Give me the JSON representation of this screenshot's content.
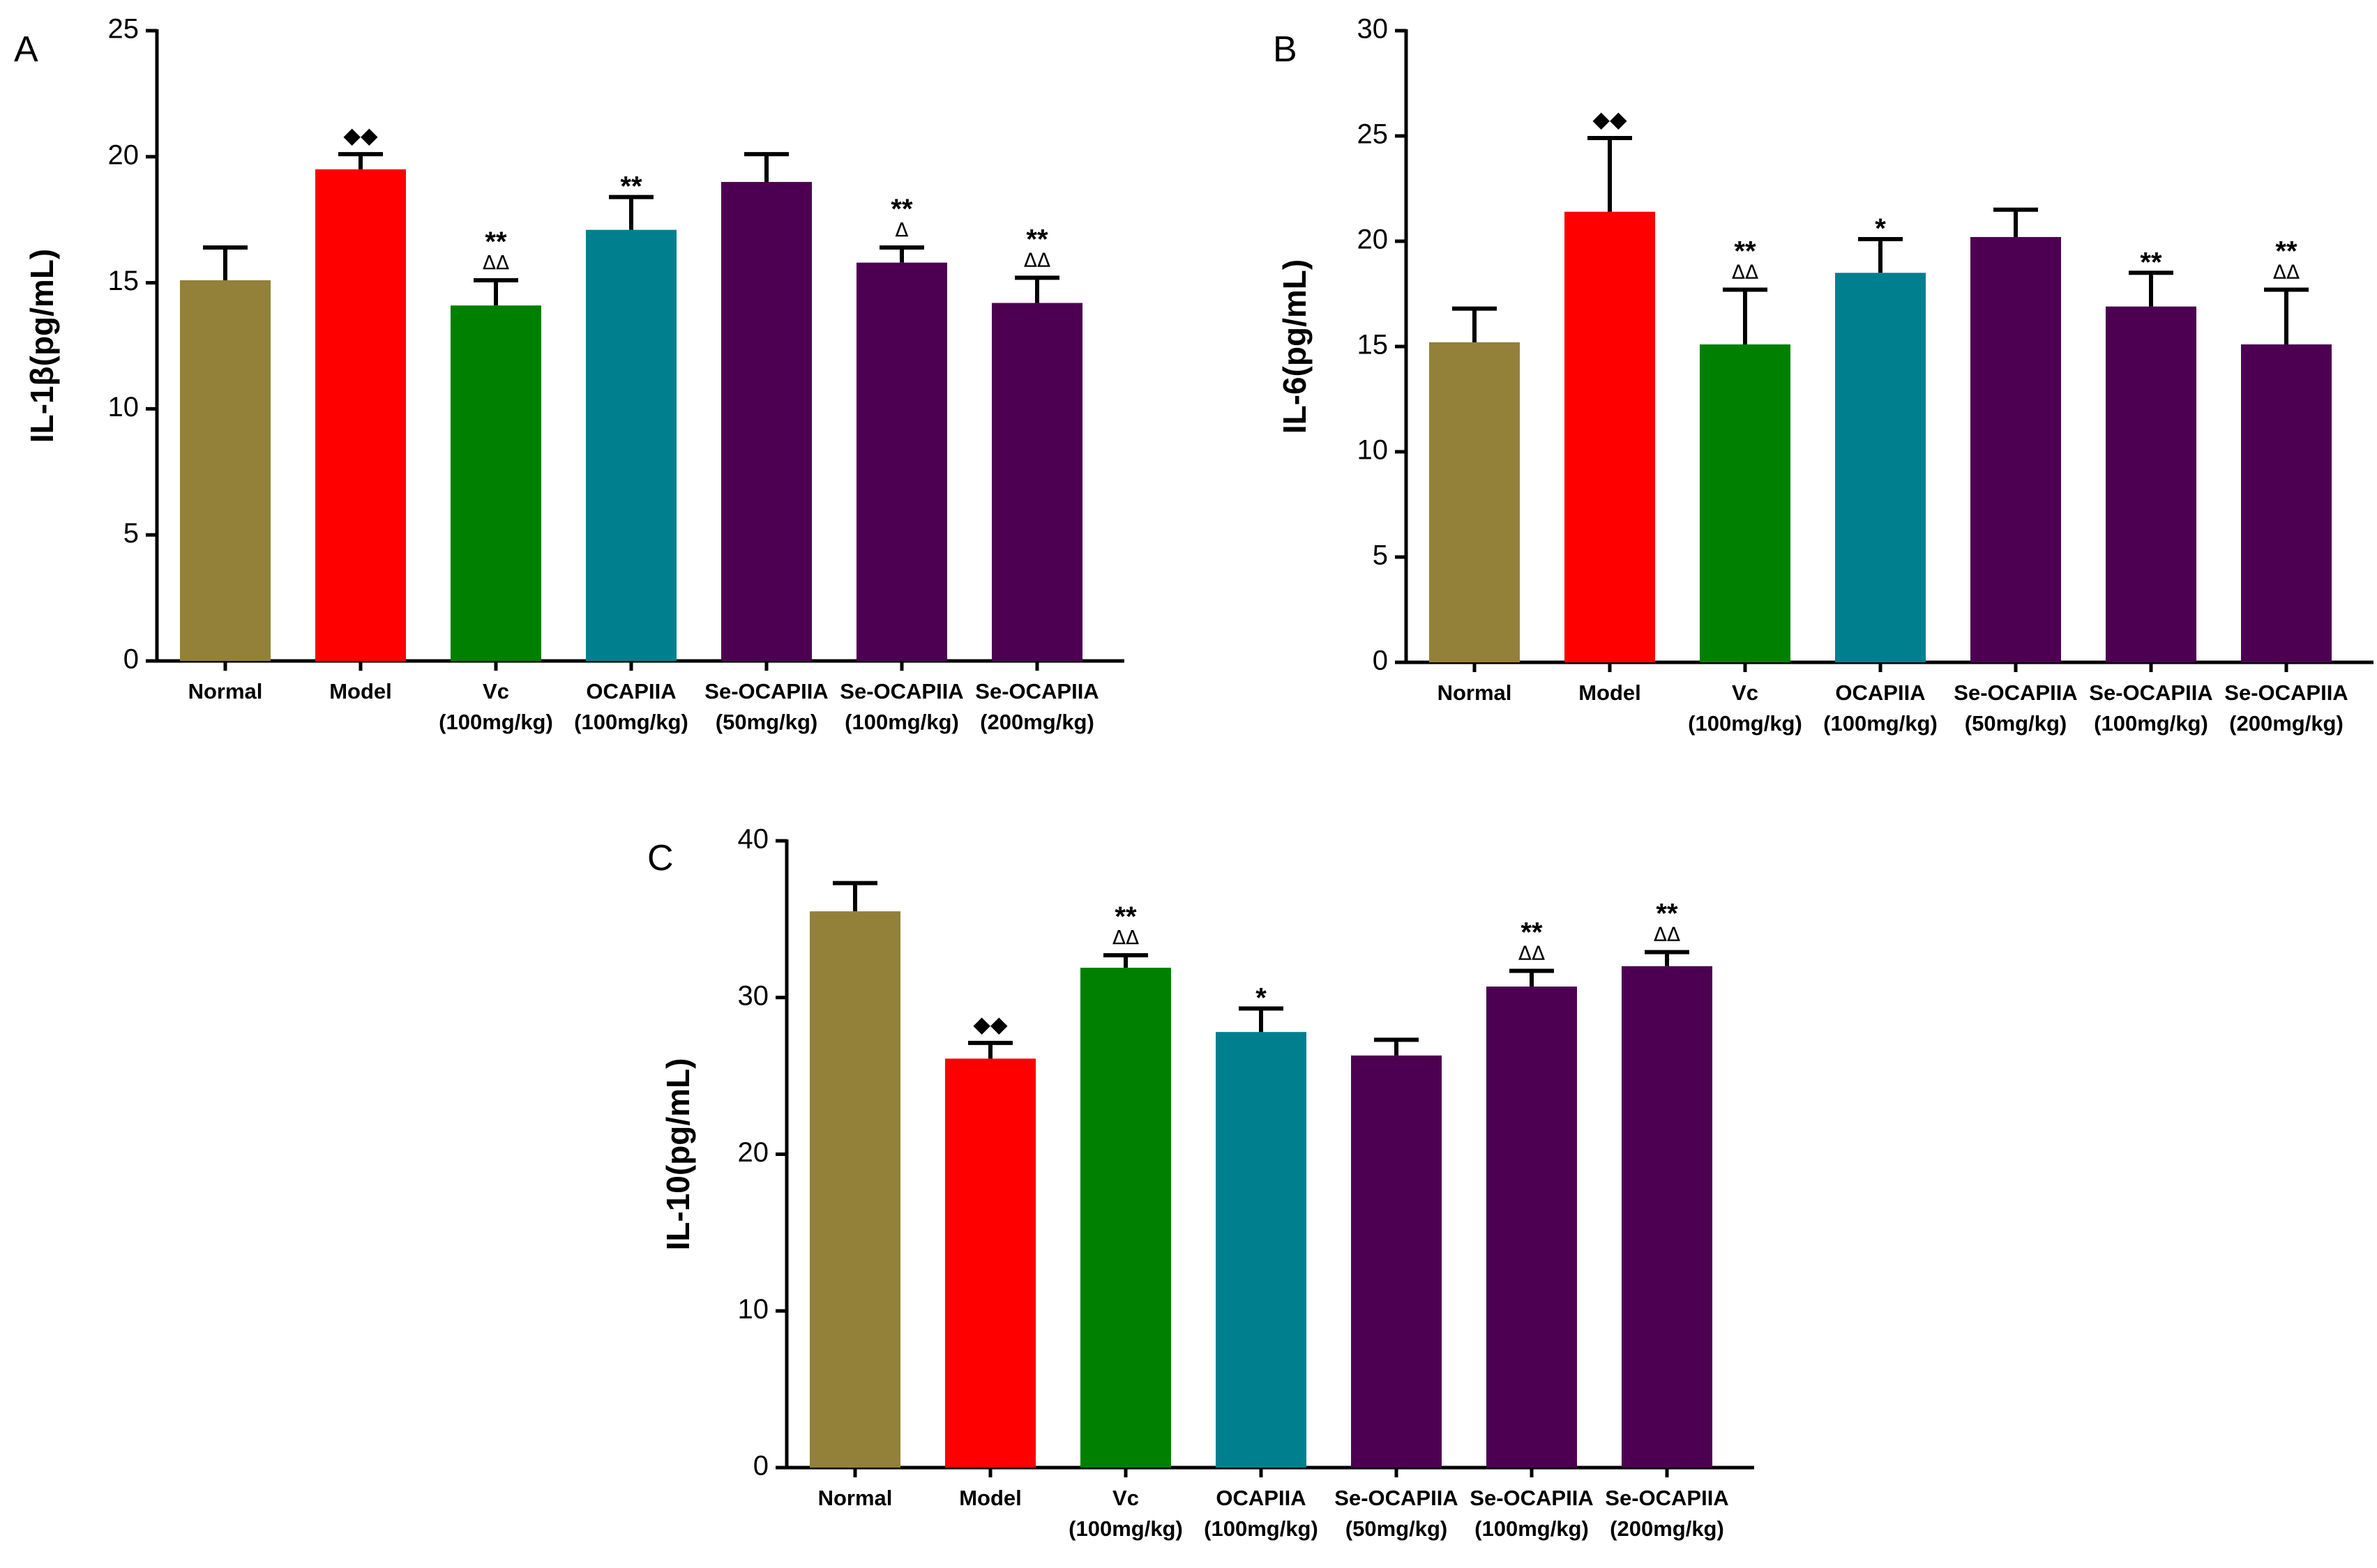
{
  "colors": {
    "normal": "#938039",
    "model": "#ff0000",
    "vc": "#008000",
    "ocapiia": "#00808f",
    "se": "#4d0051"
  },
  "chart_data": [
    {
      "panel": "A",
      "type": "bar",
      "ylabel": "IL-1β(pg/mL)",
      "ylim": [
        0,
        25
      ],
      "yticks": [
        0,
        5,
        10,
        15,
        20,
        25
      ],
      "categories": [
        [
          "Normal"
        ],
        [
          "Model"
        ],
        [
          "Vc",
          "(100mg/kg)"
        ],
        [
          "OCAPIIA",
          "(100mg/kg)"
        ],
        [
          "Se-OCAPIIA",
          "(50mg/kg)"
        ],
        [
          "Se-OCAPIIA",
          "(100mg/kg)"
        ],
        [
          "Se-OCAPIIA",
          "(200mg/kg)"
        ]
      ],
      "values": [
        15.1,
        19.5,
        14.1,
        17.1,
        19.0,
        15.8,
        14.2
      ],
      "errors": [
        1.3,
        0.6,
        1.0,
        1.3,
        1.1,
        0.6,
        1.0
      ],
      "color_keys": [
        "normal",
        "model",
        "vc",
        "ocapiia",
        "se",
        "se",
        "se"
      ],
      "significance": [
        [],
        [
          "◆◆"
        ],
        [
          "**",
          "ΔΔ"
        ],
        [
          "**"
        ],
        [],
        [
          "**",
          "Δ"
        ],
        [
          "**",
          "ΔΔ"
        ]
      ]
    },
    {
      "panel": "B",
      "type": "bar",
      "ylabel": "IL-6(pg/mL)",
      "ylim": [
        0,
        30
      ],
      "yticks": [
        0,
        5,
        10,
        15,
        20,
        25,
        30
      ],
      "categories": [
        [
          "Normal"
        ],
        [
          "Model"
        ],
        [
          "Vc",
          "(100mg/kg)"
        ],
        [
          "OCAPIIA",
          "(100mg/kg)"
        ],
        [
          "Se-OCAPIIA",
          "(50mg/kg)"
        ],
        [
          "Se-OCAPIIA",
          "(100mg/kg)"
        ],
        [
          "Se-OCAPIIA",
          "(200mg/kg)"
        ]
      ],
      "values": [
        15.2,
        21.4,
        15.1,
        18.5,
        20.2,
        16.9,
        15.1
      ],
      "errors": [
        1.6,
        3.5,
        2.6,
        1.6,
        1.3,
        1.6,
        2.6
      ],
      "color_keys": [
        "normal",
        "model",
        "vc",
        "ocapiia",
        "se",
        "se",
        "se"
      ],
      "significance": [
        [],
        [
          "◆◆"
        ],
        [
          "**",
          "ΔΔ"
        ],
        [
          "*"
        ],
        [],
        [
          "**"
        ],
        [
          "**",
          "ΔΔ"
        ]
      ]
    },
    {
      "panel": "C",
      "type": "bar",
      "ylabel": "IL-10(pg/mL)",
      "ylim": [
        0,
        40
      ],
      "yticks": [
        0,
        10,
        20,
        30,
        40
      ],
      "categories": [
        [
          "Normal"
        ],
        [
          "Model"
        ],
        [
          "Vc",
          "(100mg/kg)"
        ],
        [
          "OCAPIIA",
          "(100mg/kg)"
        ],
        [
          "Se-OCAPIIA",
          "(50mg/kg)"
        ],
        [
          "Se-OCAPIIA",
          "(100mg/kg)"
        ],
        [
          "Se-OCAPIIA",
          "(200mg/kg)"
        ]
      ],
      "values": [
        35.5,
        26.1,
        31.9,
        27.8,
        26.3,
        30.7,
        32.0
      ],
      "errors": [
        1.8,
        1.0,
        0.8,
        1.5,
        1.0,
        1.0,
        0.9
      ],
      "color_keys": [
        "normal",
        "model",
        "vc",
        "ocapiia",
        "se",
        "se",
        "se"
      ],
      "significance": [
        [],
        [
          "◆◆"
        ],
        [
          "**",
          "ΔΔ"
        ],
        [
          "*"
        ],
        [],
        [
          "**",
          "ΔΔ"
        ],
        [
          "**",
          "ΔΔ"
        ]
      ]
    }
  ]
}
